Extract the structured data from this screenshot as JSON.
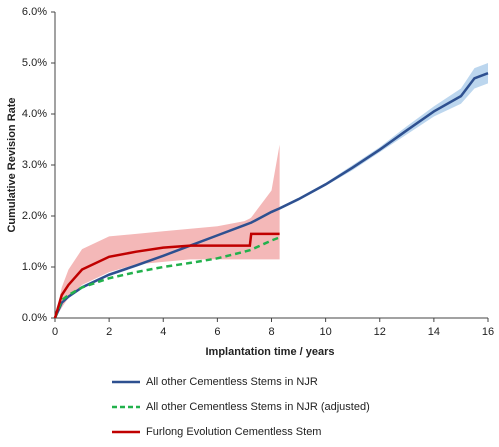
{
  "chart_data": {
    "type": "line",
    "y_label": "Cumulative Revision Rate",
    "x_label": "Implantation time  / years",
    "xlim": [
      0,
      16
    ],
    "xticks": [
      0,
      2,
      4,
      6,
      8,
      10,
      12,
      14,
      16
    ],
    "ylim": [
      0,
      6
    ],
    "yticks": [
      {
        "value": 0,
        "label": "0.0%"
      },
      {
        "value": 1,
        "label": "1.0%"
      },
      {
        "value": 2,
        "label": "2.0%"
      },
      {
        "value": 3,
        "label": "3.0%"
      },
      {
        "value": 4,
        "label": "4.0%"
      },
      {
        "value": 5,
        "label": "5.0%"
      },
      {
        "value": 6,
        "label": "6.0%"
      }
    ],
    "x": [
      0,
      0.25,
      0.5,
      1,
      2,
      3,
      4,
      5,
      6,
      7,
      7.2,
      7.25,
      8,
      8.3,
      9,
      10,
      11,
      12,
      13,
      14,
      15,
      15.5,
      16
    ],
    "series": [
      {
        "name": "All other Cementless Stems in NJR",
        "color": "#2e5090",
        "dash": false,
        "band_color": "#bcd6ee",
        "values": [
          0,
          0.3,
          0.42,
          0.6,
          0.85,
          1.03,
          1.22,
          1.42,
          1.62,
          1.82,
          1.86,
          1.87,
          2.08,
          2.15,
          2.33,
          2.62,
          2.95,
          3.3,
          3.68,
          4.05,
          4.35,
          4.7,
          4.8
        ],
        "upper": [
          0,
          0.33,
          0.45,
          0.63,
          0.88,
          1.06,
          1.25,
          1.45,
          1.65,
          1.85,
          1.89,
          1.9,
          2.11,
          2.18,
          2.36,
          2.65,
          3.0,
          3.35,
          3.76,
          4.15,
          4.5,
          4.9,
          5.0
        ],
        "lower": [
          0,
          0.27,
          0.39,
          0.57,
          0.82,
          1.0,
          1.19,
          1.39,
          1.59,
          1.79,
          1.83,
          1.84,
          2.05,
          2.12,
          2.3,
          2.59,
          2.9,
          3.25,
          3.6,
          3.95,
          4.2,
          4.5,
          4.6
        ]
      },
      {
        "name": "All other Cementless Stems in NJR (adjusted)",
        "color": "#22b14c",
        "dash": true,
        "values": [
          0,
          0.35,
          0.45,
          0.6,
          0.78,
          0.9,
          1.0,
          1.08,
          1.17,
          1.3,
          1.33,
          1.34,
          1.52,
          1.58,
          null,
          null,
          null,
          null,
          null,
          null,
          null,
          null,
          null
        ]
      },
      {
        "name": "Furlong Evolution Cementless Stem",
        "color": "#c00000",
        "dash": false,
        "band_color": "#f4b8b8",
        "values": [
          0,
          0.45,
          0.65,
          0.95,
          1.2,
          1.3,
          1.38,
          1.42,
          1.42,
          1.42,
          1.42,
          1.65,
          1.65,
          1.65,
          null,
          null,
          null,
          null,
          null,
          null,
          null,
          null,
          null
        ],
        "upper": [
          0,
          0.6,
          0.95,
          1.35,
          1.6,
          1.65,
          1.7,
          1.75,
          1.8,
          1.9,
          1.95,
          1.97,
          2.5,
          3.4,
          null,
          null,
          null,
          null,
          null,
          null,
          null,
          null,
          null
        ],
        "lower": [
          0,
          0.2,
          0.4,
          0.65,
          0.9,
          1.05,
          1.1,
          1.15,
          1.15,
          1.15,
          1.15,
          1.15,
          1.15,
          1.15,
          null,
          null,
          null,
          null,
          null,
          null,
          null,
          null,
          null
        ]
      }
    ]
  }
}
